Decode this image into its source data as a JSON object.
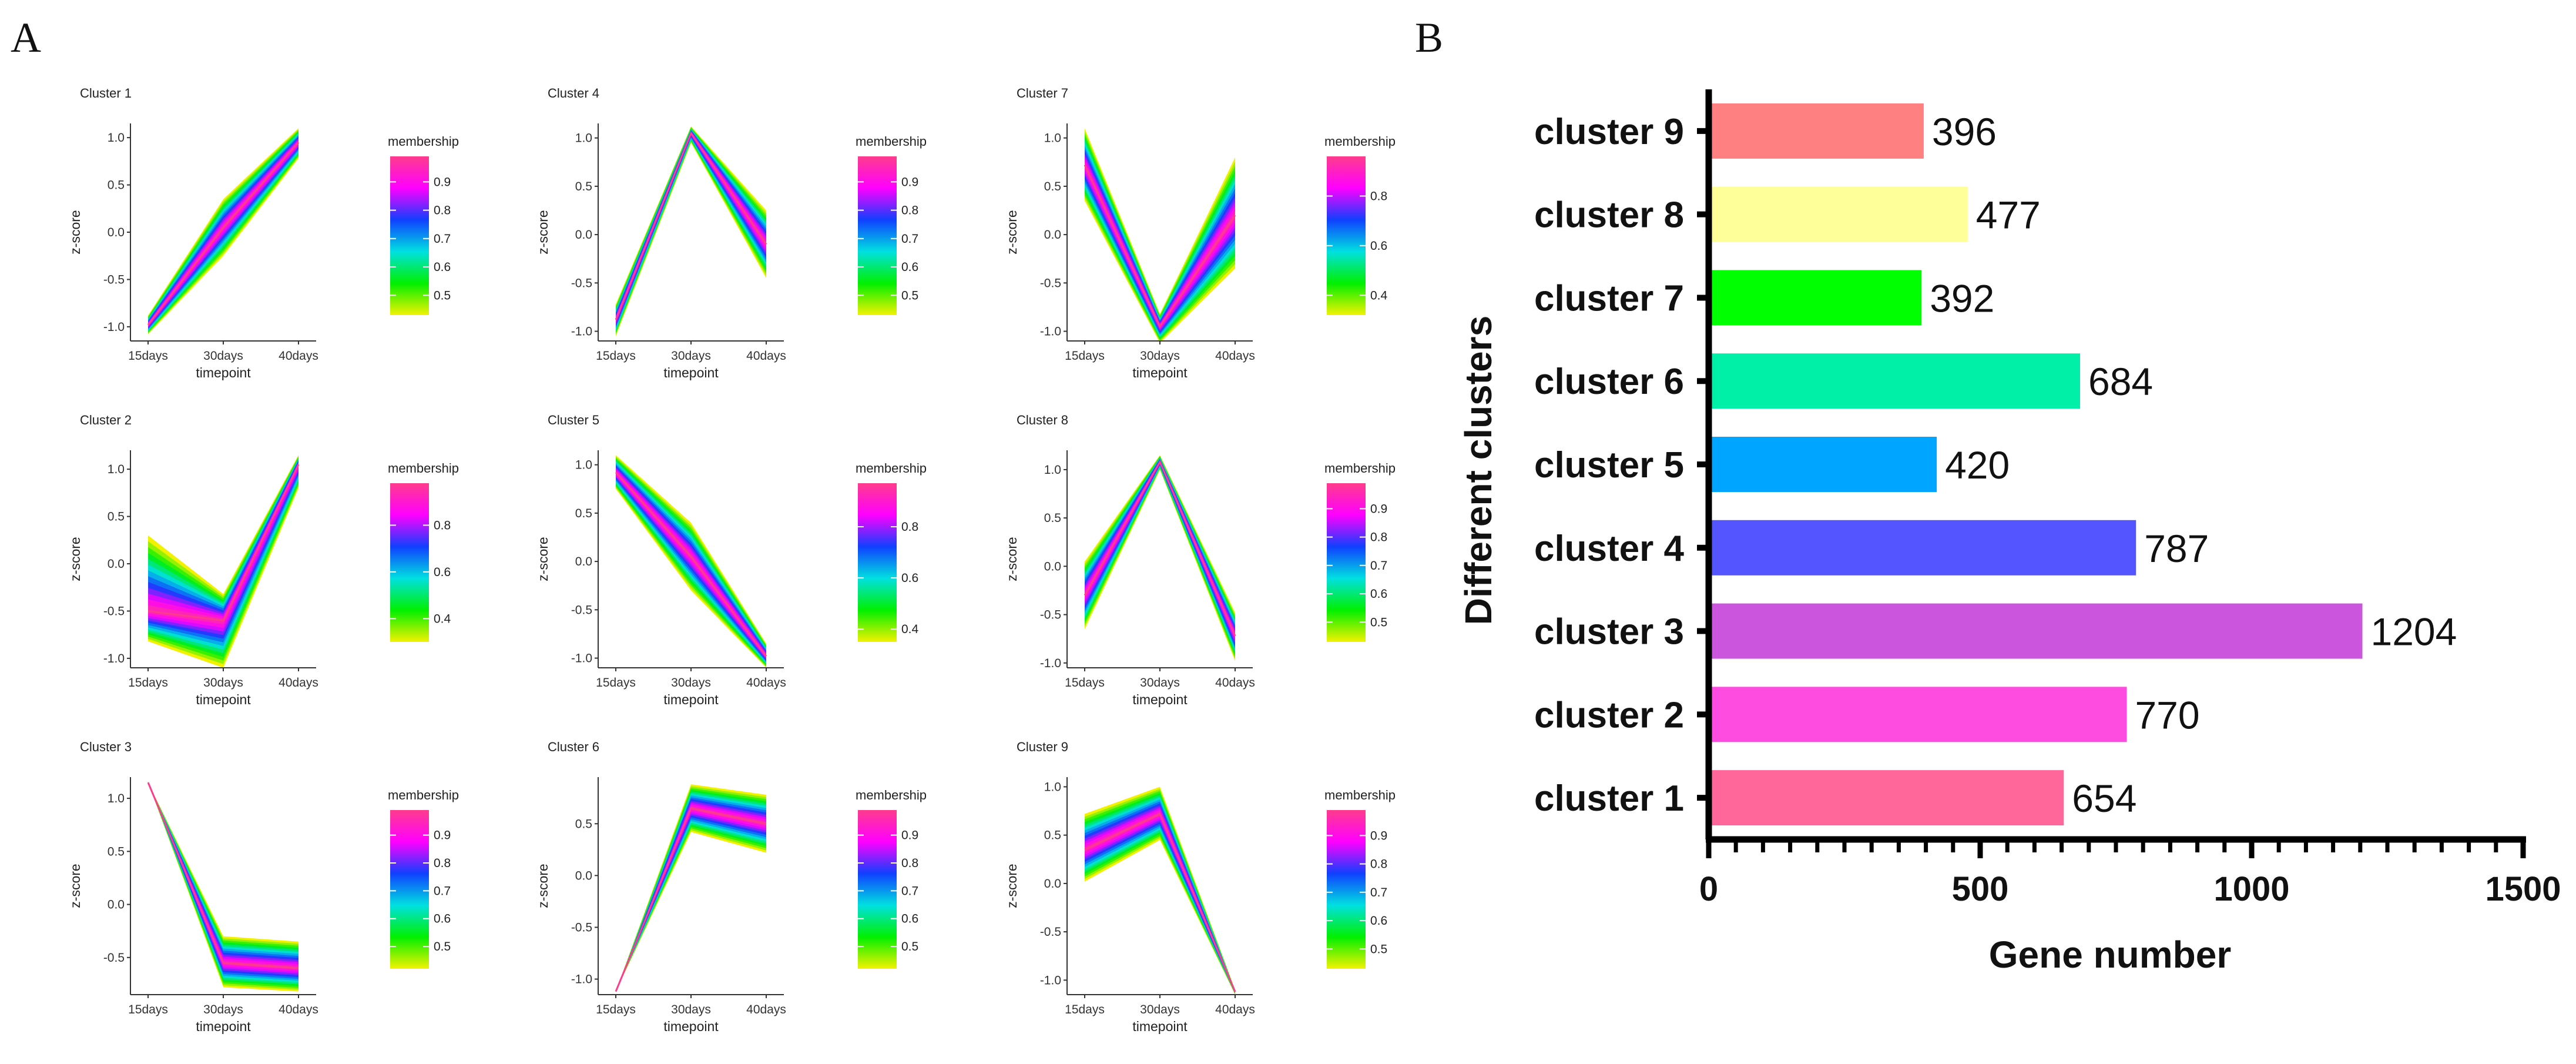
{
  "panels": {
    "a_label": "A",
    "b_label": "B"
  },
  "colors": {
    "membership_scale": [
      "#f2f200",
      "#00f000",
      "#00e0e0",
      "#1040ff",
      "#ff00ff",
      "#ff3c8c"
    ]
  },
  "chart_data": [
    {
      "type": "line",
      "panel": "A",
      "x_categories": [
        "15days",
        "30days",
        "40days"
      ],
      "xlabel": "timepoint",
      "ylabel": "z-score",
      "legend_title": "membership",
      "clusters": [
        {
          "title": "Cluster 1",
          "ylim": [
            -1.15,
            1.15
          ],
          "yticks": [
            -1.0,
            -0.5,
            0.0,
            0.5,
            1.0
          ],
          "band_low": [
            -0.88,
            -0.25,
            0.78
          ],
          "band_high": [
            -1.08,
            0.35,
            1.1
          ],
          "core": [
            -0.98,
            0.05,
            0.95
          ],
          "cb_range": [
            0.43,
            0.99
          ],
          "cb_ticks": [
            0.5,
            0.6,
            0.7,
            0.8,
            0.9
          ]
        },
        {
          "title": "Cluster 2",
          "ylim": [
            -1.1,
            1.2
          ],
          "yticks": [
            -1.0,
            -0.5,
            0.0,
            0.5,
            1.0
          ],
          "band_low": [
            0.3,
            -1.1,
            0.8
          ],
          "band_high": [
            -0.82,
            -0.32,
            1.15
          ],
          "core": [
            -0.5,
            -0.6,
            1.05
          ],
          "cb_range": [
            0.3,
            0.98
          ],
          "cb_ticks": [
            0.4,
            0.6,
            0.8
          ]
        },
        {
          "title": "Cluster 3",
          "ylim": [
            -0.85,
            1.2
          ],
          "yticks": [
            -0.5,
            0.0,
            0.5,
            1.0
          ],
          "band_low": [
            1.15,
            -0.3,
            -0.35
          ],
          "band_high": [
            1.15,
            -0.78,
            -0.82
          ],
          "core": [
            1.15,
            -0.55,
            -0.6
          ],
          "cb_range": [
            0.42,
            0.99
          ],
          "cb_ticks": [
            0.5,
            0.6,
            0.7,
            0.8,
            0.9
          ]
        },
        {
          "title": "Cluster 4",
          "ylim": [
            -1.1,
            1.15
          ],
          "yticks": [
            -1.0,
            -0.5,
            0.0,
            0.5,
            1.0
          ],
          "band_low": [
            -0.72,
            0.95,
            -0.45
          ],
          "band_high": [
            -1.05,
            1.12,
            0.25
          ],
          "core": [
            -0.88,
            1.05,
            -0.1
          ],
          "cb_range": [
            0.43,
            0.99
          ],
          "cb_ticks": [
            0.5,
            0.6,
            0.7,
            0.8,
            0.9
          ]
        },
        {
          "title": "Cluster 5",
          "ylim": [
            -1.1,
            1.15
          ],
          "yticks": [
            -1.0,
            -0.5,
            0.0,
            0.5,
            1.0
          ],
          "band_low": [
            0.75,
            -0.3,
            -0.85
          ],
          "band_high": [
            1.1,
            0.4,
            -1.1
          ],
          "core": [
            0.92,
            0.05,
            -0.98
          ],
          "cb_range": [
            0.35,
            0.97
          ],
          "cb_ticks": [
            0.4,
            0.6,
            0.8
          ]
        },
        {
          "title": "Cluster 6",
          "ylim": [
            -1.15,
            0.95
          ],
          "yticks": [
            -1.0,
            -0.5,
            0.0,
            0.5
          ],
          "band_low": [
            -1.12,
            0.42,
            0.22
          ],
          "band_high": [
            -1.12,
            0.88,
            0.78
          ],
          "core": [
            -1.12,
            0.65,
            0.5
          ],
          "cb_range": [
            0.42,
            0.99
          ],
          "cb_ticks": [
            0.5,
            0.6,
            0.7,
            0.8,
            0.9
          ]
        },
        {
          "title": "Cluster 7",
          "ylim": [
            -1.1,
            1.15
          ],
          "yticks": [
            -1.0,
            -0.5,
            0.0,
            0.5,
            1.0
          ],
          "band_low": [
            0.35,
            -1.12,
            -0.35
          ],
          "band_high": [
            1.1,
            -0.82,
            0.8
          ],
          "core": [
            0.72,
            -0.95,
            0.2
          ],
          "cb_range": [
            0.32,
            0.96
          ],
          "cb_ticks": [
            0.4,
            0.6,
            0.8
          ]
        },
        {
          "title": "Cluster 8",
          "ylim": [
            -1.05,
            1.2
          ],
          "yticks": [
            -1.0,
            -0.5,
            0.0,
            0.5,
            1.0
          ],
          "band_low": [
            -0.65,
            1.0,
            -0.98
          ],
          "band_high": [
            0.05,
            1.15,
            -0.48
          ],
          "core": [
            -0.3,
            1.08,
            -0.72
          ],
          "cb_range": [
            0.43,
            0.99
          ],
          "cb_ticks": [
            0.5,
            0.6,
            0.7,
            0.8,
            0.9
          ]
        },
        {
          "title": "Cluster 9",
          "ylim": [
            -1.15,
            1.1
          ],
          "yticks": [
            -1.0,
            -0.5,
            0.0,
            0.5,
            1.0
          ],
          "band_low": [
            0.02,
            0.45,
            -1.1
          ],
          "band_high": [
            0.72,
            1.0,
            -1.15
          ],
          "core": [
            0.35,
            0.72,
            -1.12
          ],
          "cb_range": [
            0.43,
            0.99
          ],
          "cb_ticks": [
            0.5,
            0.6,
            0.7,
            0.8,
            0.9
          ]
        }
      ]
    },
    {
      "type": "bar",
      "panel": "B",
      "orientation": "horizontal",
      "categories": [
        "cluster 9",
        "cluster 8",
        "cluster 7",
        "cluster 6",
        "cluster 5",
        "cluster 4",
        "cluster 3",
        "cluster 2",
        "cluster 1"
      ],
      "values": [
        396,
        477,
        392,
        684,
        420,
        787,
        1204,
        770,
        654
      ],
      "value_labels": [
        "396",
        "477",
        "392",
        "684",
        "420",
        "787",
        "1204",
        "770",
        "654"
      ],
      "colors": [
        "#ff8080",
        "#ffff99",
        "#00ff00",
        "#00f0a8",
        "#00a5ff",
        "#5555ff",
        "#cc55dd",
        "#ff4ce0",
        "#ff6699"
      ],
      "xlabel": "Gene number",
      "ylabel": "Different clusters",
      "xlim": [
        0,
        1500
      ],
      "xticks": [
        0,
        500,
        1000,
        1500
      ]
    }
  ]
}
